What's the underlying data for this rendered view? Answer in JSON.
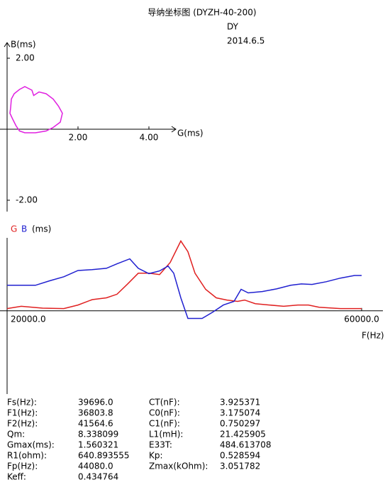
{
  "header": {
    "title": "导纳坐标图 (DYZH-40-200)",
    "operator": "DY",
    "date": "2014.6.5"
  },
  "chart_data": [
    {
      "type": "line",
      "xlabel": "G(ms)",
      "ylabel": "B(ms)",
      "xlim": [
        -0.2,
        4.76
      ],
      "ylim": [
        -2.32,
        2.44
      ],
      "xticks": [
        {
          "value": 2,
          "label": "2.00"
        },
        {
          "value": 4,
          "label": "4.00"
        }
      ],
      "yticks": [
        {
          "value": 2,
          "label": "2.00"
        },
        {
          "value": -2,
          "label": "-2.00"
        }
      ],
      "series": [
        {
          "color": "#e020e0",
          "x": [
            0.1,
            0.12,
            0.2,
            0.35,
            0.5,
            0.7,
            0.75,
            0.9,
            1.1,
            1.3,
            1.45,
            1.56,
            1.5,
            1.3,
            1.1,
            0.8,
            0.5,
            0.35,
            0.25,
            0.15,
            0.08,
            0.1
          ],
          "values": [
            0.6,
            0.85,
            1.0,
            1.12,
            1.2,
            1.1,
            0.95,
            1.05,
            1.0,
            0.85,
            0.65,
            0.45,
            0.2,
            0.05,
            -0.05,
            -0.1,
            -0.1,
            -0.05,
            0.1,
            0.3,
            0.45,
            0.6
          ]
        }
      ]
    },
    {
      "type": "line",
      "xlabel": "F(Hz)",
      "ylabel": "(ms)",
      "xlim": [
        20000,
        60000
      ],
      "ylim": [
        -1.86,
        1.63
      ],
      "xticks": [
        {
          "value": 20000,
          "label": "20000.0"
        },
        {
          "value": 60000,
          "label": "60000.0"
        }
      ],
      "series": [
        {
          "name": "G",
          "color": "#e02020",
          "x": [
            20000,
            21600,
            24000,
            26400,
            28000,
            29600,
            31200,
            32400,
            33600,
            34800,
            36000,
            37200,
            38400,
            39600,
            40400,
            41200,
            42400,
            43600,
            44800,
            46000,
            46800,
            48000,
            49600,
            51200,
            52800,
            54000,
            55200,
            57600,
            60000
          ],
          "values": [
            0.05,
            0.1,
            0.06,
            0.05,
            0.13,
            0.25,
            0.29,
            0.37,
            0.6,
            0.84,
            0.84,
            0.81,
            1.08,
            1.56,
            1.32,
            0.84,
            0.48,
            0.29,
            0.24,
            0.21,
            0.24,
            0.16,
            0.13,
            0.1,
            0.13,
            0.13,
            0.08,
            0.05,
            0.05
          ]
        },
        {
          "name": "B",
          "color": "#2020d0",
          "x": [
            20000,
            23200,
            24800,
            26400,
            28000,
            29600,
            31200,
            32400,
            33840,
            34800,
            36000,
            37200,
            38160,
            38800,
            39600,
            40400,
            42000,
            43200,
            44400,
            45600,
            46400,
            47200,
            48800,
            50400,
            52000,
            53200,
            54400,
            56000,
            57600,
            59200,
            60000
          ],
          "values": [
            0.57,
            0.57,
            0.67,
            0.76,
            0.9,
            0.92,
            0.95,
            1.05,
            1.16,
            0.95,
            0.83,
            0.89,
            1.0,
            0.84,
            0.29,
            -0.17,
            -0.17,
            -0.03,
            0.13,
            0.21,
            0.48,
            0.4,
            0.43,
            0.49,
            0.57,
            0.6,
            0.59,
            0.65,
            0.73,
            0.79,
            0.79
          ]
        }
      ]
    }
  ],
  "parameters": {
    "left": [
      [
        "Fs(Hz):",
        "39696.0"
      ],
      [
        "F1(Hz):",
        "36803.8"
      ],
      [
        "F2(Hz):",
        "41564.6"
      ],
      [
        "Qm:",
        "8.338099"
      ],
      [
        "Gmax(ms):",
        "1.560321"
      ],
      [
        "R1(ohm):",
        "640.893555"
      ],
      [
        "Fp(Hz):",
        "44080.0"
      ],
      [
        "Keff:",
        "0.434764"
      ]
    ],
    "right": [
      [
        "CT(nF):",
        "3.925371"
      ],
      [
        "C0(nF):",
        "3.175074"
      ],
      [
        "C1(nF):",
        "0.750297"
      ],
      [
        "L1(mH):",
        "21.425905"
      ],
      [
        "E33T:",
        "484.613708"
      ],
      [
        "Kp:",
        "0.528594"
      ],
      [
        "Zmax(kOhm):",
        "3.051782"
      ]
    ]
  }
}
